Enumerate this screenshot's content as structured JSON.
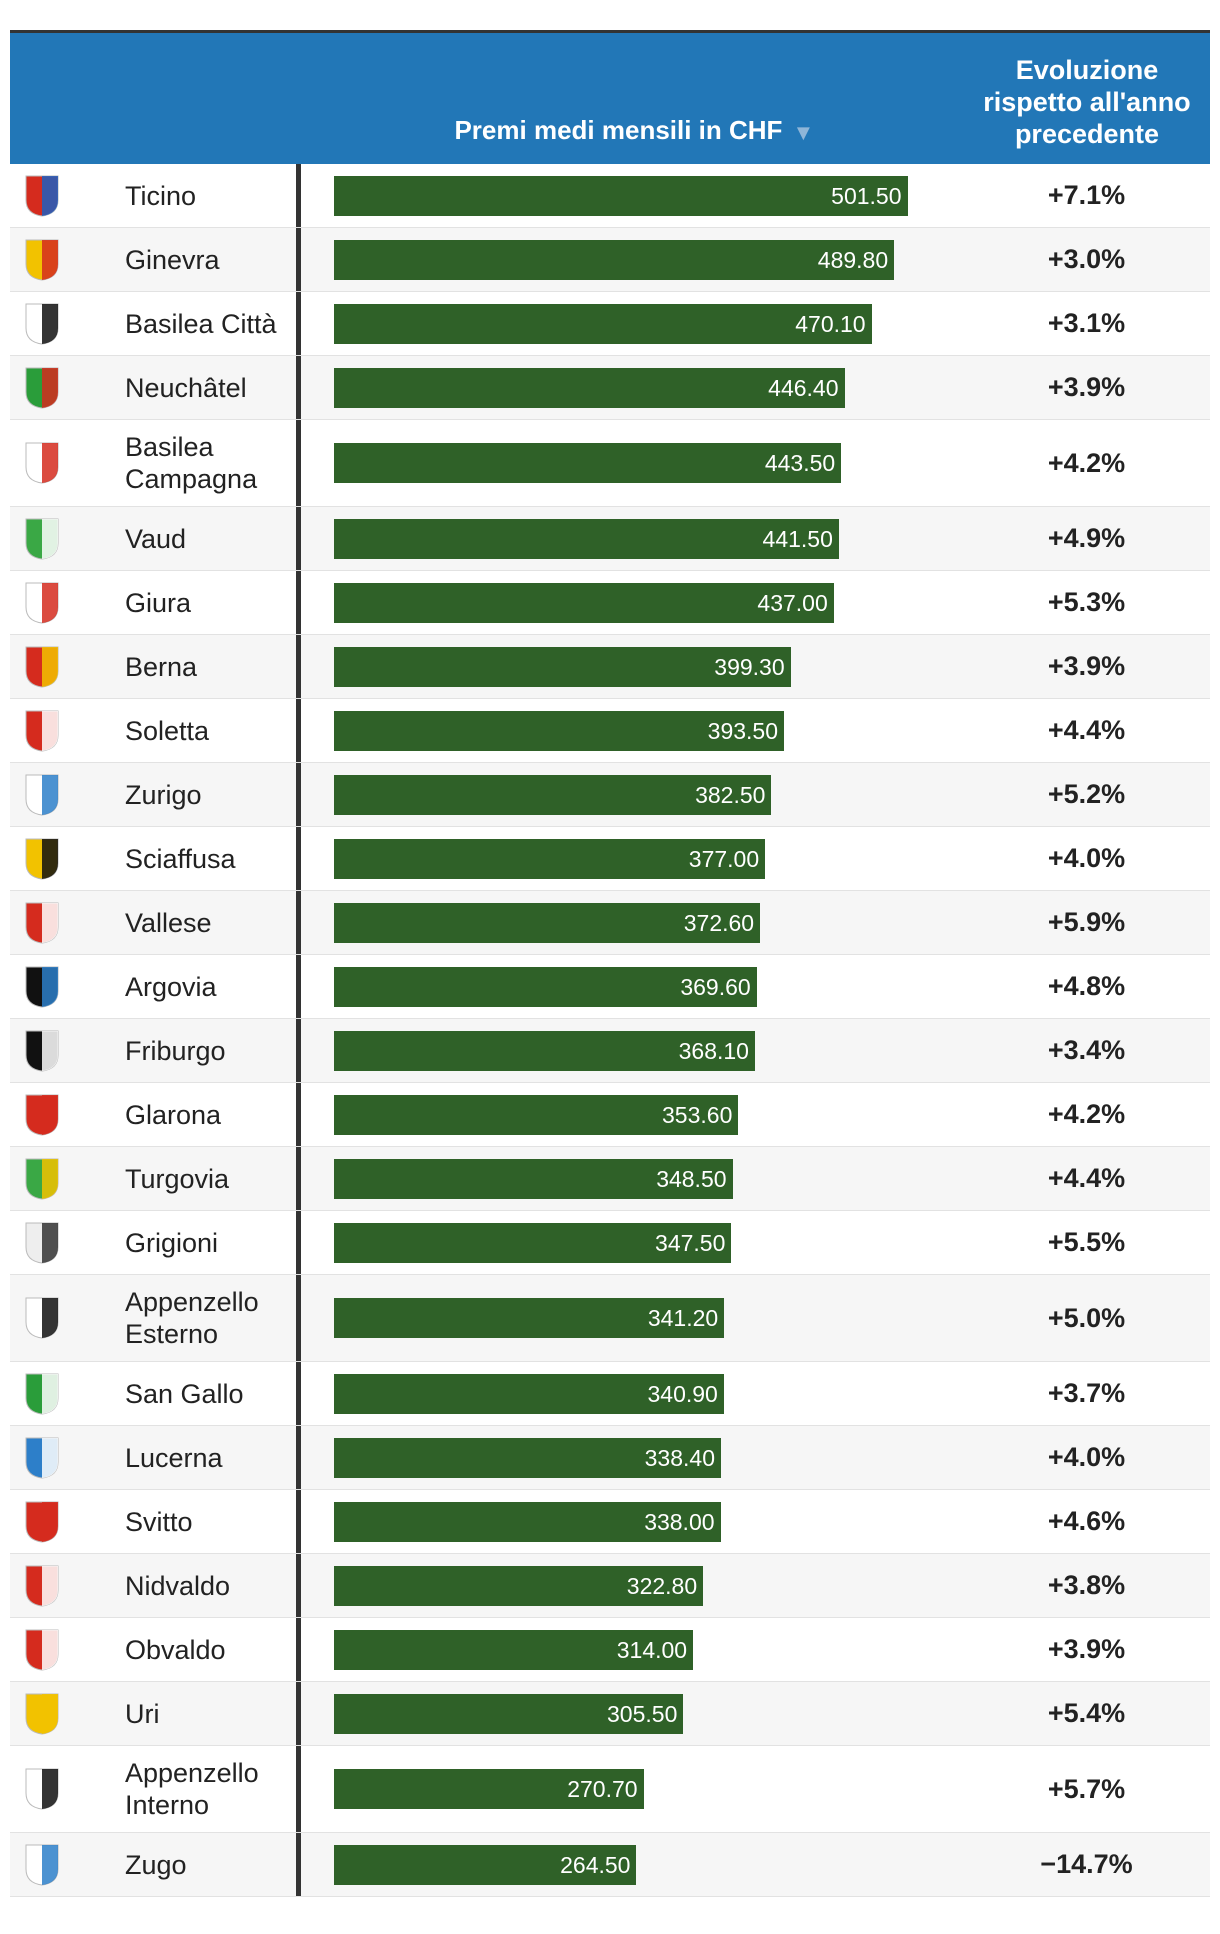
{
  "chart_data": {
    "type": "bar",
    "value_header": "Premi medi mensili in CHF",
    "sort_indicator": "▼",
    "change_header": "Evoluzione rispetto all'anno precedente",
    "color": "#2f6128",
    "xlim": [
      0,
      550
    ],
    "categories": [
      "Ticino",
      "Ginevra",
      "Basilea Città",
      "Neuchâtel",
      "Basilea Campagna",
      "Vaud",
      "Giura",
      "Berna",
      "Soletta",
      "Zurigo",
      "Sciaffusa",
      "Vallese",
      "Argovia",
      "Friburgo",
      "Glarona",
      "Turgovia",
      "Grigioni",
      "Appenzello Esterno",
      "San Gallo",
      "Lucerna",
      "Svitto",
      "Nidvaldo",
      "Obvaldo",
      "Uri",
      "Appenzello Interno",
      "Zugo"
    ],
    "values": [
      501.5,
      489.8,
      470.1,
      446.4,
      443.5,
      441.5,
      437,
      399.3,
      393.5,
      382.5,
      377,
      372.6,
      369.6,
      368.1,
      353.6,
      348.5,
      347.5,
      341.2,
      340.9,
      338.4,
      338,
      322.8,
      314,
      305.5,
      270.7,
      264.5
    ],
    "value_labels": [
      "501.50",
      "489.80",
      "470.10",
      "446.40",
      "443.50",
      "441.50",
      "437.00",
      "399.30",
      "393.50",
      "382.50",
      "377.00",
      "372.60",
      "369.60",
      "368.10",
      "353.60",
      "348.50",
      "347.50",
      "341.20",
      "340.90",
      "338.40",
      "338.00",
      "322.80",
      "314.00",
      "305.50",
      "270.70",
      "264.50"
    ],
    "changes": [
      "+7.1%",
      "+3.0%",
      "+3.1%",
      "+3.9%",
      "+4.2%",
      "+4.9%",
      "+5.3%",
      "+3.9%",
      "+4.4%",
      "+5.2%",
      "+4.0%",
      "+5.9%",
      "+4.8%",
      "+3.4%",
      "+4.2%",
      "+4.4%",
      "+5.5%",
      "+5.0%",
      "+3.7%",
      "+4.0%",
      "+4.6%",
      "+3.8%",
      "+3.9%",
      "+5.4%",
      "+5.7%",
      "−14.7%"
    ]
  }
}
